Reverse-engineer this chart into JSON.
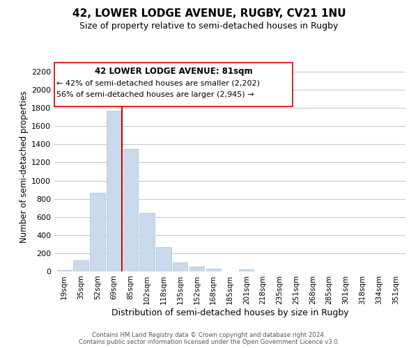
{
  "title": "42, LOWER LODGE AVENUE, RUGBY, CV21 1NU",
  "subtitle": "Size of property relative to semi-detached houses in Rugby",
  "xlabel": "Distribution of semi-detached houses by size in Rugby",
  "ylabel": "Number of semi-detached properties",
  "bar_color": "#c8daeb",
  "bar_edge_color": "#a8c0d8",
  "marker_color": "#cc0000",
  "categories": [
    "19sqm",
    "35sqm",
    "52sqm",
    "69sqm",
    "85sqm",
    "102sqm",
    "118sqm",
    "135sqm",
    "152sqm",
    "168sqm",
    "185sqm",
    "201sqm",
    "218sqm",
    "235sqm",
    "251sqm",
    "268sqm",
    "285sqm",
    "301sqm",
    "318sqm",
    "334sqm",
    "351sqm"
  ],
  "values": [
    15,
    120,
    870,
    1770,
    1350,
    645,
    270,
    100,
    50,
    30,
    0,
    25,
    0,
    0,
    0,
    0,
    0,
    0,
    0,
    0,
    0
  ],
  "ylim": [
    0,
    2300
  ],
  "yticks": [
    0,
    200,
    400,
    600,
    800,
    1000,
    1200,
    1400,
    1600,
    1800,
    2000,
    2200
  ],
  "annotation_title": "42 LOWER LODGE AVENUE: 81sqm",
  "annotation_line1": "← 42% of semi-detached houses are smaller (2,202)",
  "annotation_line2": "56% of semi-detached houses are larger (2,945) →",
  "footer1": "Contains HM Land Registry data © Crown copyright and database right 2024.",
  "footer2": "Contains public sector information licensed under the Open Government Licence v3.0.",
  "background_color": "#ffffff",
  "grid_color": "#c8c8c8"
}
